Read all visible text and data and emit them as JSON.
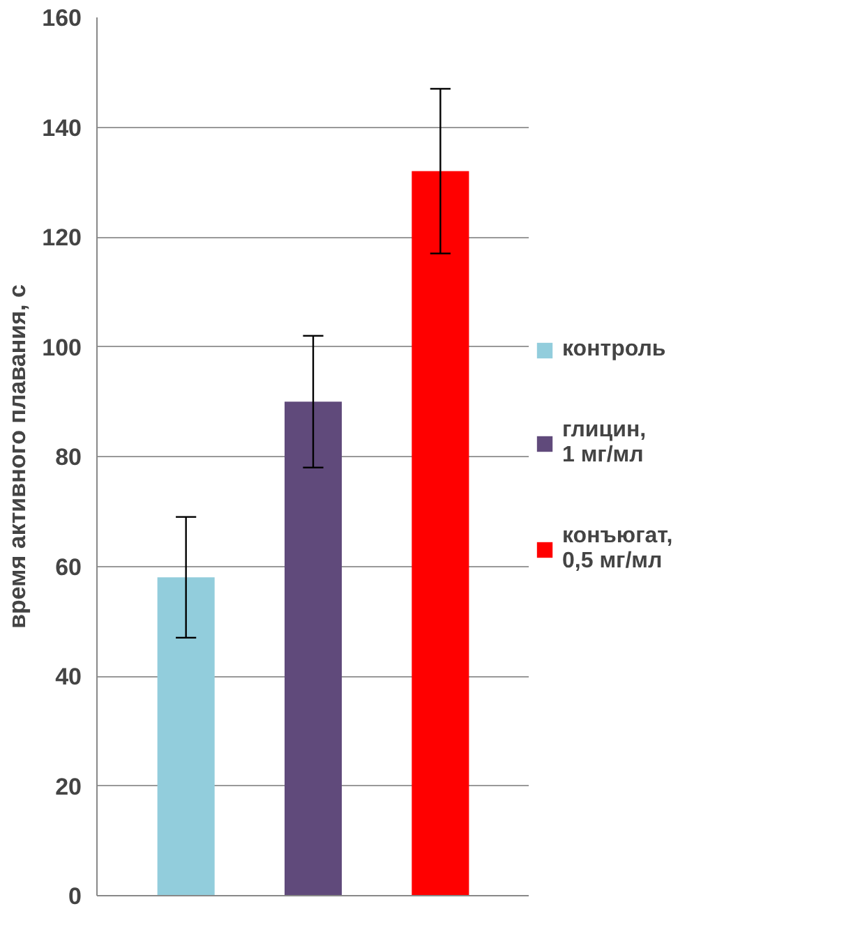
{
  "chart_data": {
    "type": "bar",
    "ylabel": "время активного плавания, с",
    "categories": [
      null,
      null,
      null
    ],
    "series": [
      {
        "name": "контроль",
        "color": "#92cddc",
        "values": [
          58,
          null,
          null
        ],
        "errors": [
          11,
          null,
          null
        ]
      },
      {
        "name": "глицин, 1 мг/мл",
        "color": "#604a7b",
        "values": [
          null,
          90,
          null
        ],
        "errors": [
          null,
          12,
          null
        ]
      },
      {
        "name": "конъюгат, 0,5 мг/мл",
        "color": "#ff0000",
        "values": [
          null,
          null,
          132
        ],
        "errors": [
          null,
          null,
          15
        ]
      }
    ],
    "ylim": [
      0,
      160
    ],
    "yticks": [
      0,
      20,
      40,
      60,
      80,
      100,
      120,
      140,
      160
    ],
    "grid": "y",
    "legend": "right",
    "tick_labels": "y"
  }
}
